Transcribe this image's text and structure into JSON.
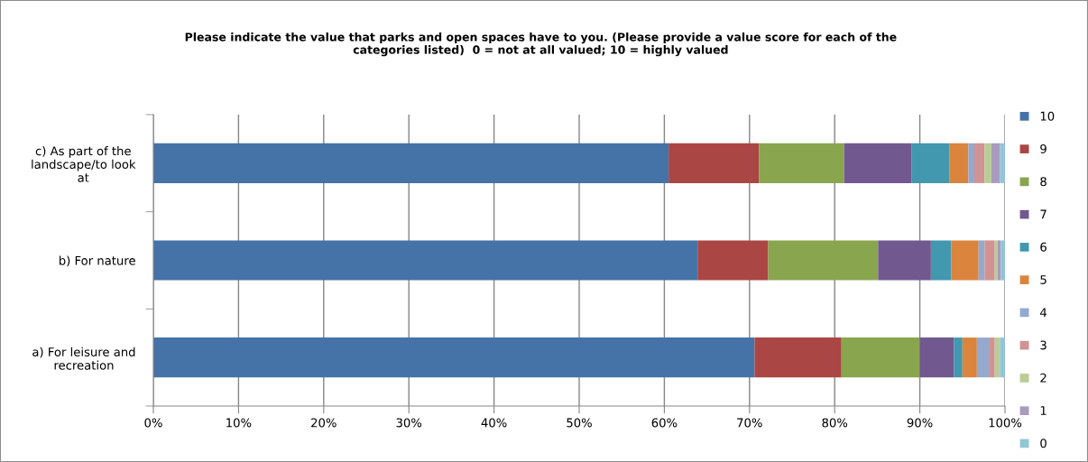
{
  "chart_data": {
    "type": "bar",
    "orientation": "horizontal",
    "stacked": true,
    "title": "Please indicate the value that parks and open spaces have to you. (Please provide a value score for each of the\ncategories listed)  0 = not at all valued; 10 = highly valued",
    "categories": [
      "c) As part of the\nlandscape/to look\nat",
      "b) For nature",
      "a) For leisure and\nrecreation"
    ],
    "series": [
      {
        "name": "10",
        "color": "#4572a7",
        "values": [
          60.5,
          63.9,
          70.6
        ]
      },
      {
        "name": "9",
        "color": "#aa4643",
        "values": [
          10.6,
          8.3,
          10.2
        ]
      },
      {
        "name": "8",
        "color": "#89a54e",
        "values": [
          10.0,
          12.9,
          9.2
        ]
      },
      {
        "name": "7",
        "color": "#71588f",
        "values": [
          7.9,
          6.2,
          4.0
        ]
      },
      {
        "name": "6",
        "color": "#4198af",
        "values": [
          4.5,
          2.4,
          1.0
        ]
      },
      {
        "name": "5",
        "color": "#db843d",
        "values": [
          2.2,
          3.2,
          1.7
        ]
      },
      {
        "name": "4",
        "color": "#93a9cf",
        "values": [
          0.7,
          0.7,
          1.4
        ]
      },
      {
        "name": "3",
        "color": "#d19392",
        "values": [
          1.2,
          1.2,
          0.7
        ]
      },
      {
        "name": "2",
        "color": "#b9cd96",
        "values": [
          0.8,
          0.3,
          0.6
        ]
      },
      {
        "name": "1",
        "color": "#a99bbd",
        "values": [
          1.0,
          0.4,
          0.0
        ]
      },
      {
        "name": "0",
        "color": "#92c5d6",
        "values": [
          0.6,
          0.5,
          0.6
        ]
      }
    ],
    "xlim": [
      0,
      100
    ],
    "xticks": [
      {
        "value": 0,
        "label": "0%"
      },
      {
        "value": 10,
        "label": "10%"
      },
      {
        "value": 20,
        "label": "20%"
      },
      {
        "value": 30,
        "label": "30%"
      },
      {
        "value": 40,
        "label": "40%"
      },
      {
        "value": 50,
        "label": "50%"
      },
      {
        "value": 60,
        "label": "60%"
      },
      {
        "value": 70,
        "label": "70%"
      },
      {
        "value": 80,
        "label": "80%"
      },
      {
        "value": 90,
        "label": "90%"
      },
      {
        "value": 100,
        "label": "100%"
      }
    ],
    "grid": "x",
    "legend": "right"
  }
}
